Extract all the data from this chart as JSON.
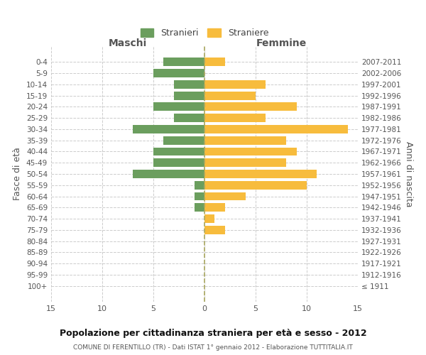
{
  "age_groups": [
    "0-4",
    "5-9",
    "10-14",
    "15-19",
    "20-24",
    "25-29",
    "30-34",
    "35-39",
    "40-44",
    "45-49",
    "50-54",
    "55-59",
    "60-64",
    "65-69",
    "70-74",
    "75-79",
    "80-84",
    "85-89",
    "90-94",
    "95-99",
    "100+"
  ],
  "birth_years": [
    "2007-2011",
    "2002-2006",
    "1997-2001",
    "1992-1996",
    "1987-1991",
    "1982-1986",
    "1977-1981",
    "1972-1976",
    "1967-1971",
    "1962-1966",
    "1957-1961",
    "1952-1956",
    "1947-1951",
    "1942-1946",
    "1937-1941",
    "1932-1936",
    "1927-1931",
    "1922-1926",
    "1917-1921",
    "1912-1916",
    "≤ 1911"
  ],
  "males": [
    4,
    5,
    3,
    3,
    5,
    3,
    7,
    4,
    5,
    5,
    7,
    1,
    1,
    1,
    0,
    0,
    0,
    0,
    0,
    0,
    0
  ],
  "females": [
    2,
    0,
    6,
    5,
    9,
    6,
    14,
    8,
    9,
    8,
    11,
    10,
    4,
    2,
    1,
    2,
    0,
    0,
    0,
    0,
    0
  ],
  "male_color": "#6b9e5e",
  "female_color": "#f7bc3d",
  "background_color": "#ffffff",
  "grid_color": "#cccccc",
  "title": "Popolazione per cittadinanza straniera per età e sesso - 2012",
  "subtitle": "COMUNE DI FERENTILLO (TR) - Dati ISTAT 1° gennaio 2012 - Elaborazione TUTTITALIA.IT",
  "xlabel_left": "Maschi",
  "xlabel_right": "Femmine",
  "ylabel_left": "Fasce di età",
  "ylabel_right": "Anni di nascita",
  "legend_male": "Stranieri",
  "legend_female": "Straniere",
  "xlim": 15,
  "bar_height": 0.75
}
